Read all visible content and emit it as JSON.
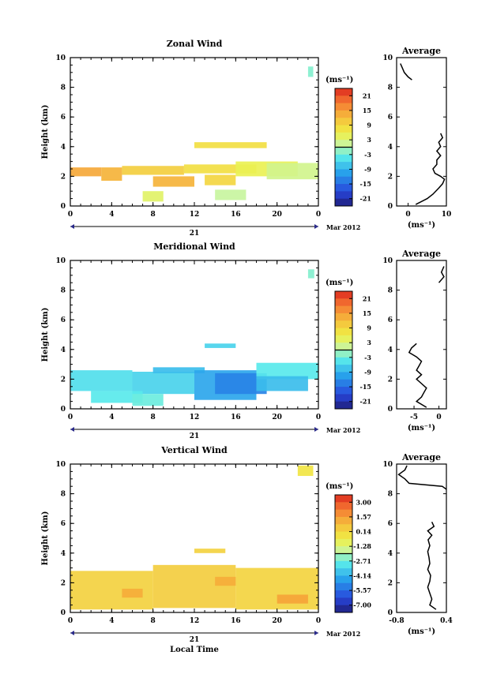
{
  "chart_data": [
    {
      "type": "heatmap",
      "title": "Zonal Wind",
      "ylabel": "Height (km)",
      "xlabel": "",
      "xticks": [
        "0",
        "4",
        "8",
        "12",
        "16",
        "20",
        "0"
      ],
      "yticks": [
        "0",
        "2",
        "4",
        "6",
        "8",
        "10"
      ],
      "ylim": [
        0,
        10
      ],
      "day_label": "21",
      "date_label": "Mar 2012",
      "colorbar": {
        "unit": "(ms⁻¹)",
        "ticks": [
          "21",
          "15",
          "9",
          "3",
          "-3",
          "-9",
          "-15",
          "-21"
        ],
        "range": [
          -24,
          24
        ]
      },
      "bands": [
        {
          "x": [
            0,
            3
          ],
          "y": [
            2.0,
            2.6
          ],
          "value": 14
        },
        {
          "x": [
            3,
            5
          ],
          "y": [
            1.7,
            2.6
          ],
          "value": 13
        },
        {
          "x": [
            5,
            11
          ],
          "y": [
            2.1,
            2.7
          ],
          "value": 10
        },
        {
          "x": [
            8,
            12
          ],
          "y": [
            1.3,
            2.0
          ],
          "value": 13
        },
        {
          "x": [
            11,
            18
          ],
          "y": [
            2.2,
            2.8
          ],
          "value": 8
        },
        {
          "x": [
            13,
            16
          ],
          "y": [
            1.4,
            2.1
          ],
          "value": 9
        },
        {
          "x": [
            16,
            22
          ],
          "y": [
            2.0,
            3.0
          ],
          "value": 5
        },
        {
          "x": [
            19,
            24
          ],
          "y": [
            1.8,
            2.9
          ],
          "value": 2
        },
        {
          "x": [
            12,
            19
          ],
          "y": [
            3.9,
            4.3
          ],
          "value": 8
        },
        {
          "x": [
            7,
            9
          ],
          "y": [
            0.3,
            1.0
          ],
          "value": 4
        },
        {
          "x": [
            14,
            17
          ],
          "y": [
            0.4,
            1.1
          ],
          "value": 1
        },
        {
          "x": [
            23,
            23.5
          ],
          "y": [
            8.7,
            9.4
          ],
          "value": -2
        }
      ],
      "average": {
        "title": "Average",
        "xlabel": "(ms⁻¹)",
        "xticks": [
          "0",
          "10"
        ],
        "xlim": [
          -3,
          10
        ],
        "height": [
          0.1,
          0.5,
          0.8,
          1.2,
          1.5,
          1.8,
          2.0,
          2.2,
          2.5,
          2.8,
          3.1,
          3.4,
          3.7,
          4.0,
          4.3,
          4.6,
          4.9,
          8.5,
          8.7,
          9.0,
          9.3,
          9.6
        ],
        "value": [
          2,
          5,
          6.5,
          8,
          9,
          9.5,
          8.5,
          7,
          6.5,
          7.5,
          7.5,
          8.5,
          7.5,
          8.5,
          8,
          9,
          8.5,
          1,
          0,
          -1,
          -1.5,
          -2
        ]
      }
    },
    {
      "type": "heatmap",
      "title": "Meridional Wind",
      "ylabel": "Height (km)",
      "xlabel": "",
      "xticks": [
        "0",
        "4",
        "8",
        "12",
        "16",
        "20",
        "0"
      ],
      "yticks": [
        "0",
        "2",
        "4",
        "6",
        "8",
        "10"
      ],
      "ylim": [
        0,
        10
      ],
      "day_label": "21",
      "date_label": "Mar 2012",
      "colorbar": {
        "unit": "(ms⁻¹)",
        "ticks": [
          "21",
          "15",
          "9",
          "3",
          "-3",
          "-9",
          "-15",
          "-21"
        ],
        "range": [
          -24,
          24
        ]
      },
      "bands": [
        {
          "x": [
            0,
            6
          ],
          "y": [
            1.2,
            2.6
          ],
          "value": -5
        },
        {
          "x": [
            6,
            12
          ],
          "y": [
            1.0,
            2.5
          ],
          "value": -6
        },
        {
          "x": [
            8,
            13
          ],
          "y": [
            2.4,
            2.8
          ],
          "value": -8
        },
        {
          "x": [
            12,
            18
          ],
          "y": [
            0.6,
            2.6
          ],
          "value": -10
        },
        {
          "x": [
            14,
            19
          ],
          "y": [
            1.0,
            2.4
          ],
          "value": -13
        },
        {
          "x": [
            18,
            24
          ],
          "y": [
            2.0,
            3.1
          ],
          "value": -4
        },
        {
          "x": [
            18,
            23
          ],
          "y": [
            1.2,
            2.2
          ],
          "value": -8
        },
        {
          "x": [
            2,
            7
          ],
          "y": [
            0.4,
            1.2
          ],
          "value": -4
        },
        {
          "x": [
            13,
            16
          ],
          "y": [
            4.1,
            4.4
          ],
          "value": -6
        },
        {
          "x": [
            6,
            9
          ],
          "y": [
            0.2,
            1.0
          ],
          "value": -3
        },
        {
          "x": [
            23,
            23.6
          ],
          "y": [
            8.8,
            9.4
          ],
          "value": -2
        }
      ],
      "average": {
        "title": "Average",
        "xlabel": "(ms⁻¹)",
        "xticks": [
          "-5",
          "0"
        ],
        "xlim": [
          -8.5,
          1.5
        ],
        "height": [
          0.1,
          0.5,
          0.8,
          1.1,
          1.4,
          1.7,
          2.0,
          2.3,
          2.6,
          2.9,
          3.2,
          3.5,
          3.8,
          4.1,
          4.4,
          8.5,
          8.9,
          9.2,
          9.6
        ],
        "value": [
          -2.5,
          -4.5,
          -3.5,
          -3,
          -2.5,
          -3.5,
          -4.5,
          -3.5,
          -4.5,
          -4,
          -3.5,
          -4.5,
          -6,
          -5.5,
          -4.5,
          0,
          1,
          0.5,
          1
        ]
      }
    },
    {
      "type": "heatmap",
      "title": "Vertical Wind",
      "ylabel": "Height (km)",
      "xlabel": "Local Time",
      "xticks": [
        "0",
        "4",
        "8",
        "12",
        "16",
        "20",
        "0"
      ],
      "yticks": [
        "0",
        "2",
        "4",
        "6",
        "8",
        "10"
      ],
      "ylim": [
        0,
        10
      ],
      "day_label": "21",
      "date_label": "Mar 2012",
      "colorbar": {
        "unit": "(ms⁻¹)",
        "ticks": [
          "3.00",
          "1.57",
          "0.14",
          "-1.28",
          "-2.71",
          "-4.14",
          "-5.57",
          "-7.00"
        ],
        "range": [
          -7.7,
          3.7
        ]
      },
      "bands": [
        {
          "x": [
            0,
            8
          ],
          "y": [
            0.2,
            2.8
          ],
          "value": 0.3
        },
        {
          "x": [
            8,
            16
          ],
          "y": [
            0.3,
            3.2
          ],
          "value": 0.4
        },
        {
          "x": [
            16,
            24
          ],
          "y": [
            0.2,
            3.0
          ],
          "value": 0.2
        },
        {
          "x": [
            5,
            7
          ],
          "y": [
            1.0,
            1.6
          ],
          "value": 1.2
        },
        {
          "x": [
            14,
            16
          ],
          "y": [
            1.8,
            2.4
          ],
          "value": 1.2
        },
        {
          "x": [
            20,
            23
          ],
          "y": [
            0.6,
            1.2
          ],
          "value": 1.4
        },
        {
          "x": [
            12,
            15
          ],
          "y": [
            4.0,
            4.3
          ],
          "value": 0.3
        },
        {
          "x": [
            22,
            23.5
          ],
          "y": [
            9.2,
            9.9
          ],
          "value": -0.3
        }
      ],
      "average": {
        "title": "Average",
        "xlabel": "(ms⁻¹)",
        "xticks": [
          "-0.8",
          "0.4"
        ],
        "xlim": [
          -0.8,
          0.4
        ],
        "height": [
          0.2,
          0.5,
          0.9,
          1.3,
          1.7,
          2.1,
          2.5,
          2.9,
          3.3,
          3.7,
          4.1,
          4.5,
          4.9,
          5.2,
          5.5,
          5.8,
          6.1,
          8.3,
          8.5,
          8.7,
          9.0,
          9.3,
          9.6,
          9.9
        ],
        "value": [
          0.15,
          0.0,
          0.05,
          0.0,
          -0.05,
          0.0,
          0.02,
          -0.05,
          0.0,
          -0.02,
          -0.05,
          0.0,
          -0.04,
          0.05,
          -0.05,
          0.1,
          0.05,
          0.4,
          0.3,
          -0.5,
          -0.6,
          -0.75,
          -0.6,
          -0.55
        ]
      }
    }
  ]
}
